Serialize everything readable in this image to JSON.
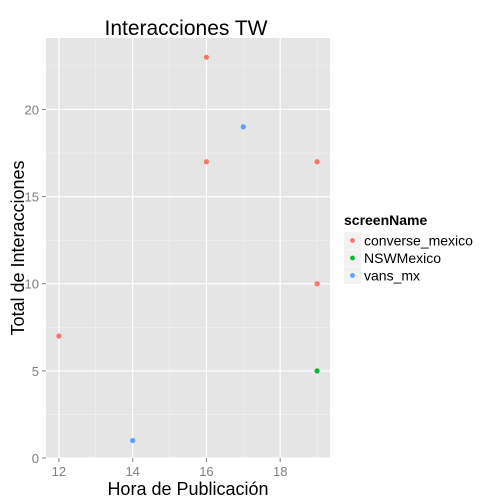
{
  "chart_data": {
    "type": "scatter",
    "title": "Interacciones TW",
    "xlabel": "Hora de Publicación",
    "ylabel": "Total de Interacciones",
    "xlim": [
      11.65,
      19.35
    ],
    "ylim": [
      0,
      24.1
    ],
    "xticks": [
      12,
      14,
      16,
      18
    ],
    "yticks": [
      0,
      5,
      10,
      15,
      20
    ],
    "grid": true,
    "legend": {
      "title": "screenName",
      "placement": "right"
    },
    "series": [
      {
        "name": "converse_mexico",
        "color": "#F8766D",
        "points": [
          {
            "x": 12,
            "y": 7
          },
          {
            "x": 16,
            "y": 23
          },
          {
            "x": 16,
            "y": 17
          },
          {
            "x": 19,
            "y": 17
          },
          {
            "x": 19,
            "y": 10
          }
        ]
      },
      {
        "name": "NSWMexico",
        "color": "#00BA38",
        "points": [
          {
            "x": 19,
            "y": 5
          }
        ]
      },
      {
        "name": "vans_mx",
        "color": "#619CFF",
        "points": [
          {
            "x": 17,
            "y": 19
          },
          {
            "x": 14,
            "y": 1
          }
        ]
      }
    ]
  }
}
